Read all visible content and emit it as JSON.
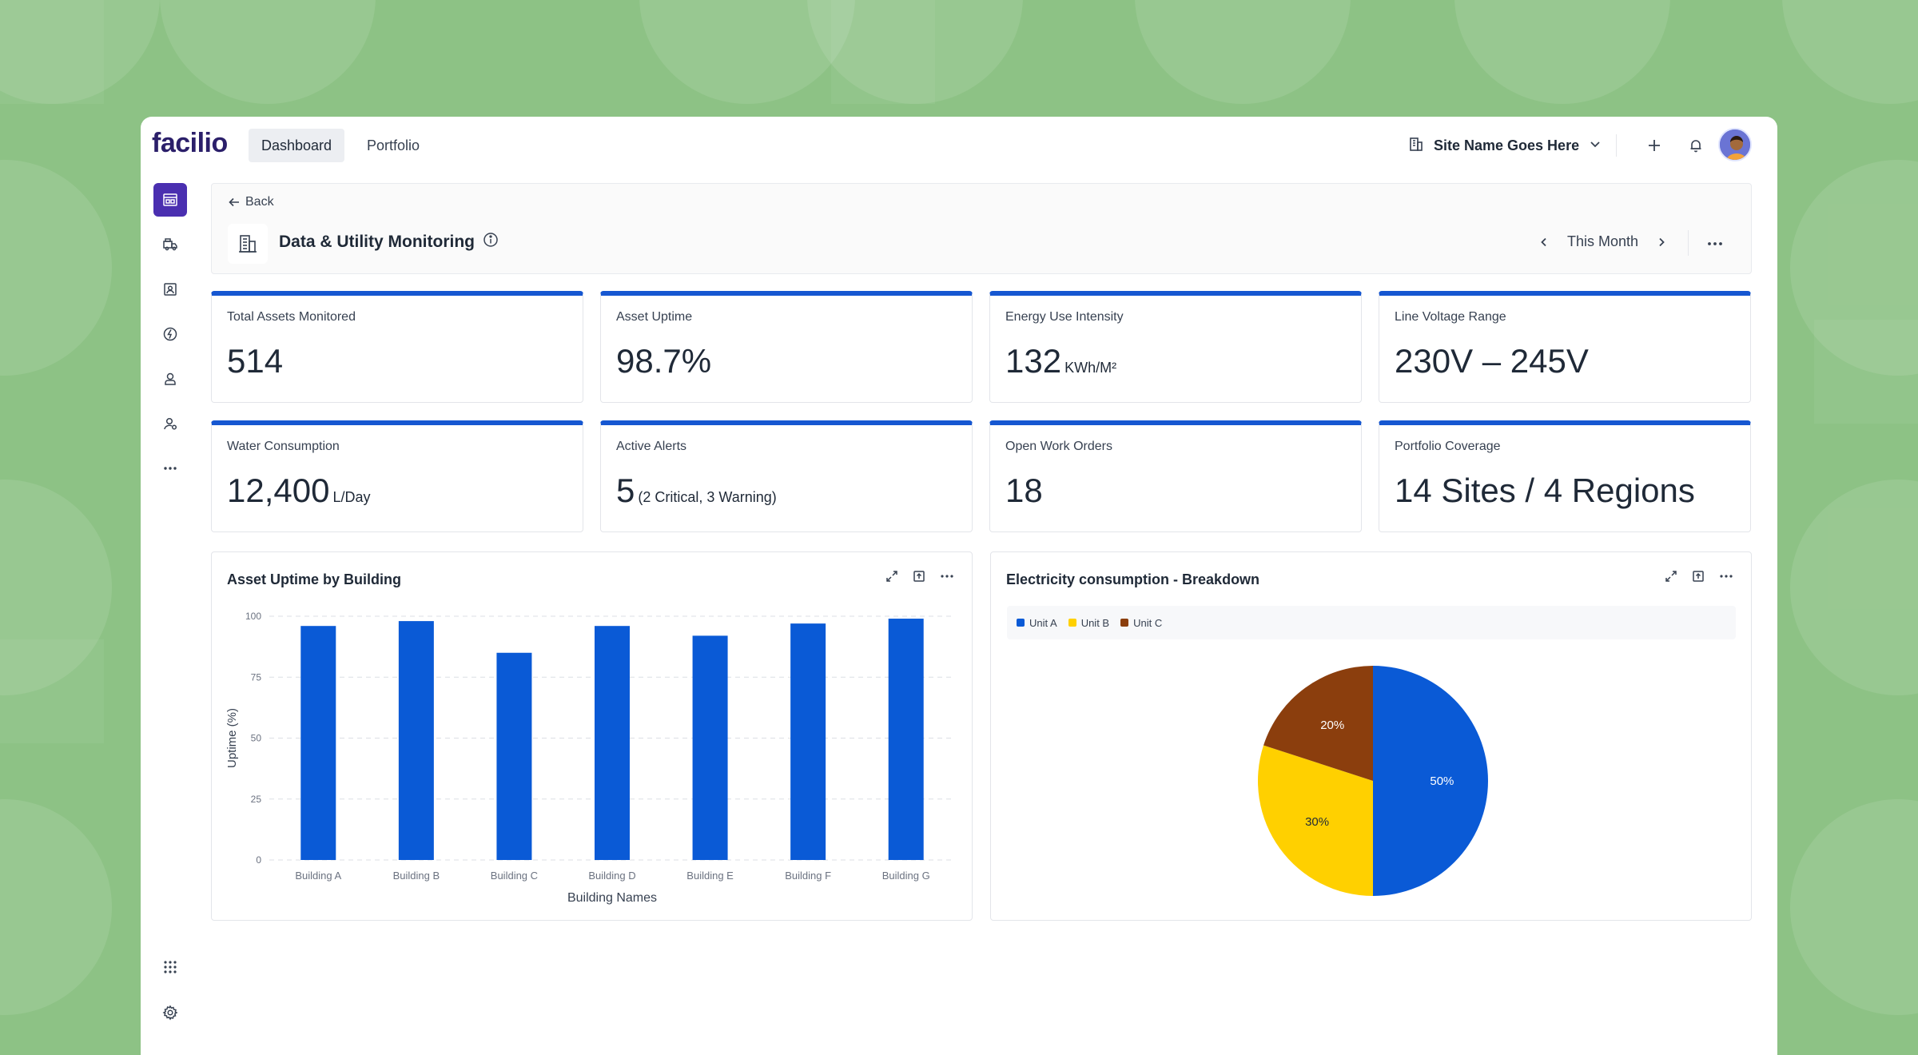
{
  "app": {
    "logo_text": "facilio"
  },
  "topnav": {
    "tabs": [
      {
        "label": "Dashboard",
        "active": true
      },
      {
        "label": "Portfolio",
        "active": false
      }
    ],
    "site_selector": "Site Name Goes Here"
  },
  "sidebar": {
    "items": [
      {
        "icon": "dashboard-icon",
        "active": true
      },
      {
        "icon": "truck-icon"
      },
      {
        "icon": "id-card-icon"
      },
      {
        "icon": "energy-icon"
      },
      {
        "icon": "user-icon"
      },
      {
        "icon": "user-settings-icon"
      },
      {
        "icon": "more-icon"
      }
    ],
    "bottom_items": [
      {
        "icon": "apps-grid-icon"
      },
      {
        "icon": "gear-icon"
      }
    ]
  },
  "header": {
    "back_label": "Back",
    "title": "Data & Utility Monitoring",
    "period": "This Month"
  },
  "kpis": [
    {
      "label": "Total Assets Monitored",
      "value": "514",
      "unit": ""
    },
    {
      "label": "Asset Uptime",
      "value": "98.7%",
      "unit": ""
    },
    {
      "label": "Energy Use Intensity",
      "value": "132",
      "unit": "KWh/M²"
    },
    {
      "label": "Line Voltage Range",
      "value": "230V – 245V",
      "unit": ""
    },
    {
      "label": "Water Consumption",
      "value": "12,400",
      "unit": "L/Day"
    },
    {
      "label": "Active Alerts",
      "value": "5",
      "unit": "(2 Critical, 3 Warning)"
    },
    {
      "label": "Open Work Orders",
      "value": "18",
      "unit": ""
    },
    {
      "label": "Portfolio Coverage",
      "value": "14 Sites / 4 Regions",
      "unit": ""
    }
  ],
  "colors": {
    "accent": "#1657d1",
    "sidebar_active": "#4a2fb0",
    "bar": "#0a5ad6",
    "unit_a": "#0a5ad6",
    "unit_b": "#ffd000",
    "unit_c": "#8b3e0d"
  },
  "chart_data": [
    {
      "type": "bar",
      "title": "Asset Uptime by Building",
      "xlabel": "Building Names",
      "ylabel": "Uptime (%)",
      "categories": [
        "Building A",
        "Building B",
        "Building C",
        "Building D",
        "Building E",
        "Building F",
        "Building G"
      ],
      "values": [
        96,
        98,
        85,
        96,
        92,
        97,
        99
      ],
      "ylim": [
        0,
        100
      ],
      "yticks": [
        0,
        25,
        50,
        75,
        100
      ],
      "grid": true
    },
    {
      "type": "pie",
      "title": "Electricity consumption - Breakdown",
      "legend_position": "top-left",
      "slices": [
        {
          "name": "Unit A",
          "value": 50,
          "label": "50%"
        },
        {
          "name": "Unit B",
          "value": 30,
          "label": "30%"
        },
        {
          "name": "Unit C",
          "value": 20,
          "label": "20%"
        }
      ]
    }
  ]
}
